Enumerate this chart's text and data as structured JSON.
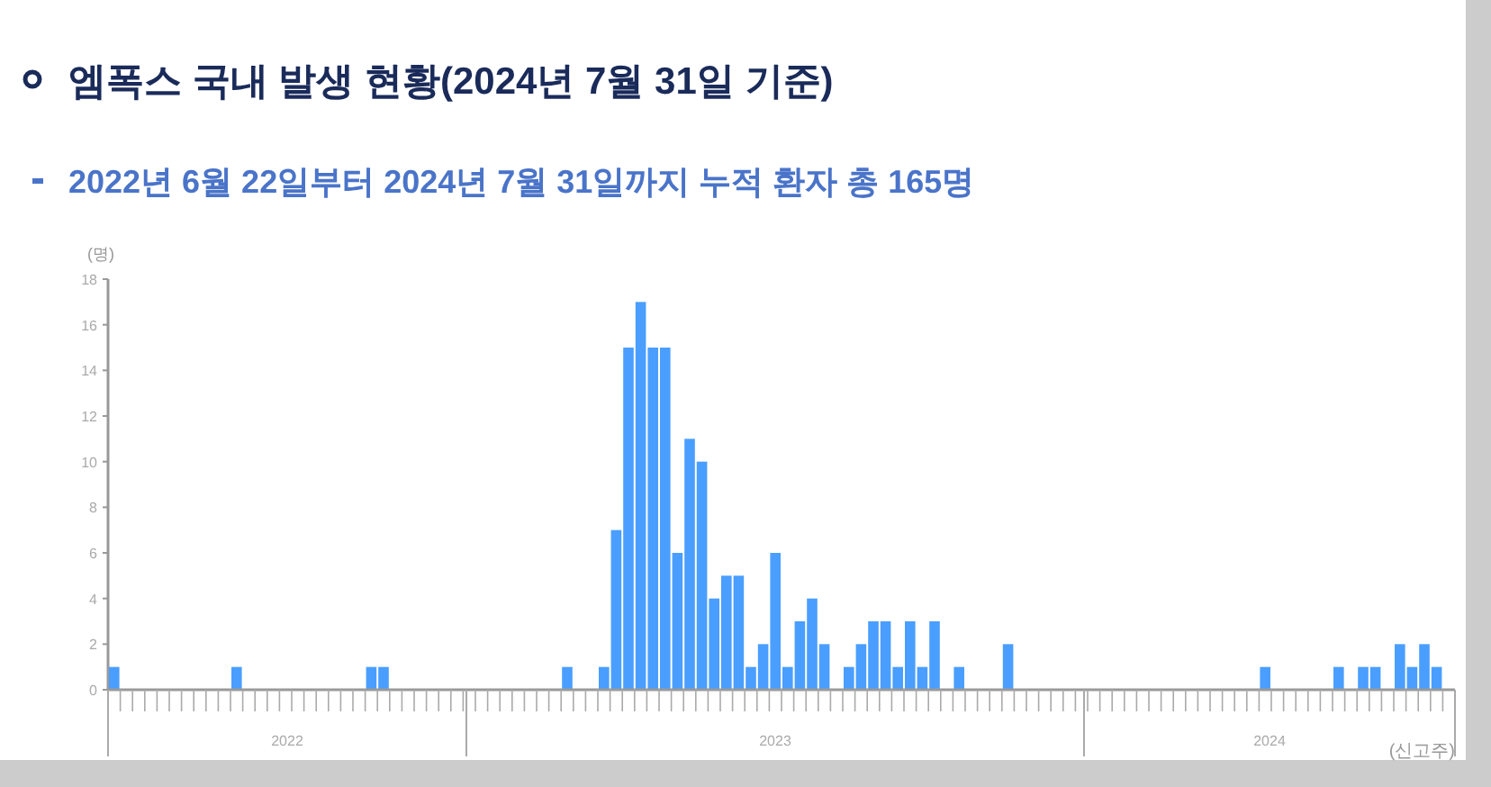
{
  "chart_data": {
    "type": "bar",
    "title": "엠폭스 국내 발생 현황(2024년 7월 31일 기준)",
    "subtitle": "2022년 6월 22일부터 2024년 7월 31일까지 누적 환자 총 165명",
    "ylabel": "(명)",
    "xlabel": "(신고주)",
    "annotations": [
      "2022",
      "2023",
      "2024"
    ],
    "categories": [
      null,
      null,
      null,
      null,
      null,
      null,
      null,
      null,
      null,
      null,
      null,
      null,
      null,
      null,
      null,
      null,
      null,
      null,
      null,
      null,
      null,
      null,
      null,
      null,
      null,
      null,
      null,
      null,
      null,
      null,
      null,
      null,
      null,
      null,
      null,
      null,
      null,
      null,
      null,
      null,
      null,
      null,
      null,
      null,
      null,
      null,
      null,
      null,
      null,
      null,
      null,
      null,
      null,
      null,
      null,
      null,
      null,
      null,
      null,
      null,
      null,
      null,
      null,
      null,
      null,
      null,
      null,
      null,
      null,
      null,
      null,
      null,
      null,
      null,
      null,
      null,
      null,
      null,
      null,
      null,
      null,
      null,
      null,
      null,
      null,
      null,
      null,
      null,
      null,
      null,
      null,
      null,
      null,
      null,
      null,
      null,
      null,
      null,
      null,
      null,
      null,
      null,
      null,
      null,
      null,
      null,
      null,
      null,
      null,
      null
    ],
    "values": [
      1,
      0,
      0,
      0,
      0,
      0,
      0,
      0,
      0,
      0,
      1,
      0,
      0,
      0,
      0,
      0,
      0,
      0,
      0,
      0,
      0,
      1,
      1,
      0,
      0,
      0,
      0,
      0,
      0,
      0,
      0,
      0,
      0,
      0,
      0,
      0,
      0,
      1,
      0,
      0,
      1,
      7,
      15,
      17,
      15,
      15,
      6,
      11,
      10,
      4,
      5,
      5,
      1,
      2,
      6,
      1,
      3,
      4,
      2,
      0,
      1,
      2,
      3,
      3,
      1,
      3,
      1,
      3,
      0,
      1,
      0,
      0,
      0,
      2,
      0,
      0,
      0,
      0,
      0,
      0,
      0,
      0,
      0,
      0,
      0,
      0,
      0,
      0,
      0,
      0,
      0,
      0,
      0,
      0,
      1,
      0,
      0,
      0,
      0,
      0,
      1,
      0,
      1,
      1,
      0,
      2,
      1,
      2,
      1,
      0
    ],
    "color": "#4a9eff",
    "ylim": [
      0,
      18
    ],
    "yticks": [
      0,
      2,
      4,
      6,
      8,
      10,
      12,
      14,
      16,
      18
    ],
    "grid": false
  }
}
